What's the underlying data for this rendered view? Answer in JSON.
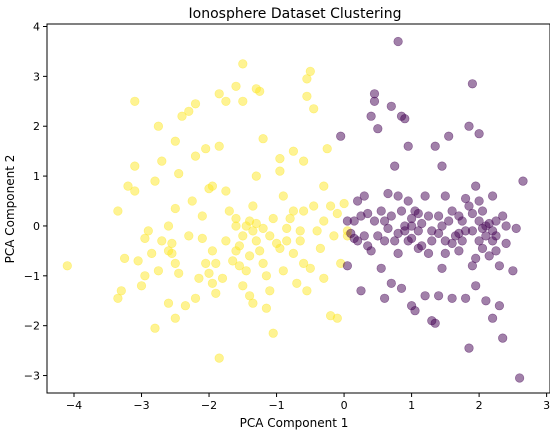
{
  "chart_data": {
    "type": "scatter",
    "title": "Ionosphere Dataset Clustering",
    "xlabel": "PCA Component 1",
    "ylabel": "PCA Component 2",
    "xlim": [
      -4.4,
      3.05
    ],
    "ylim": [
      -3.35,
      4.05
    ],
    "xticks": [
      -4,
      -3,
      -2,
      -1,
      0,
      1,
      2,
      3
    ],
    "yticks": [
      -3,
      -2,
      -1,
      0,
      1,
      2,
      3,
      4
    ],
    "xtick_labels": [
      "−4",
      "−3",
      "−2",
      "−1",
      "0",
      "1",
      "2",
      "3"
    ],
    "ytick_labels": [
      "−3",
      "−2",
      "−1",
      "0",
      "1",
      "2",
      "3",
      "4"
    ],
    "grid": false,
    "legend": false,
    "marker_opacity": 0.5,
    "series": [
      {
        "color": "#fde725",
        "points": [
          [
            -4.1,
            -0.8
          ],
          [
            -3.35,
            -1.45
          ],
          [
            -3.3,
            -1.3
          ],
          [
            -3.25,
            -0.65
          ],
          [
            -3.35,
            0.3
          ],
          [
            -3.2,
            0.8
          ],
          [
            -3.1,
            0.7
          ],
          [
            -3.1,
            1.2
          ],
          [
            -3.1,
            2.5
          ],
          [
            -3.05,
            -0.7
          ],
          [
            -3.0,
            -1.2
          ],
          [
            -2.95,
            -1.0
          ],
          [
            -2.9,
            -0.1
          ],
          [
            -2.8,
            0.9
          ],
          [
            -2.8,
            -2.05
          ],
          [
            -2.75,
            -0.9
          ],
          [
            -2.7,
            -0.3
          ],
          [
            -2.6,
            -0.5
          ],
          [
            -2.55,
            -0.55
          ],
          [
            -2.5,
            -0.75
          ],
          [
            -2.45,
            -0.95
          ],
          [
            -2.6,
            -1.55
          ],
          [
            -2.5,
            -1.85
          ],
          [
            -2.75,
            2.0
          ],
          [
            -2.7,
            1.3
          ],
          [
            -2.5,
            1.7
          ],
          [
            -2.4,
            2.2
          ],
          [
            -2.3,
            2.3
          ],
          [
            -2.35,
            -1.6
          ],
          [
            -2.2,
            -1.45
          ],
          [
            -2.25,
            0.5
          ],
          [
            -2.1,
            0.2
          ],
          [
            -2.2,
            1.4
          ],
          [
            -2.05,
            -0.75
          ],
          [
            -2.0,
            -0.95
          ],
          [
            -1.95,
            -1.15
          ],
          [
            -1.9,
            -1.35
          ],
          [
            -1.8,
            -1.05
          ],
          [
            -1.75,
            -0.3
          ],
          [
            -1.7,
            0.3
          ],
          [
            -1.75,
            0.7
          ],
          [
            -1.95,
            0.8
          ],
          [
            -1.6,
            -0.5
          ],
          [
            -1.55,
            -0.8
          ],
          [
            -1.5,
            -1.2
          ],
          [
            -1.4,
            0.1
          ],
          [
            -1.35,
            -0.1
          ],
          [
            -1.3,
            -0.3
          ],
          [
            -1.25,
            -0.5
          ],
          [
            -1.2,
            -0.75
          ],
          [
            -1.15,
            -1.0
          ],
          [
            -1.35,
            0.4
          ],
          [
            -1.6,
            0.0
          ],
          [
            -1.5,
            -0.2
          ],
          [
            -1.2,
            -0.05
          ],
          [
            -1.1,
            -0.2
          ],
          [
            -1.05,
            0.15
          ],
          [
            -0.95,
            -0.45
          ],
          [
            -0.9,
            -0.9
          ],
          [
            -0.85,
            -0.3
          ],
          [
            -0.8,
            0.15
          ],
          [
            -0.75,
            -0.55
          ],
          [
            -0.7,
            -1.15
          ],
          [
            -0.6,
            -0.75
          ],
          [
            -0.55,
            -1.3
          ],
          [
            -0.5,
            -0.85
          ],
          [
            -0.45,
            0.4
          ],
          [
            -0.4,
            -0.1
          ],
          [
            -0.35,
            -0.45
          ],
          [
            -0.3,
            0.1
          ],
          [
            -0.3,
            0.8
          ],
          [
            -0.2,
            0.4
          ],
          [
            -0.2,
            -1.8
          ],
          [
            -0.6,
            0.3
          ],
          [
            -1.15,
            -1.65
          ],
          [
            -1.05,
            -2.15
          ],
          [
            -1.4,
            -1.4
          ],
          [
            -1.3,
            1.0
          ],
          [
            -1.2,
            1.75
          ],
          [
            -1.25,
            2.7
          ],
          [
            -1.3,
            2.75
          ],
          [
            -1.35,
            -1.55
          ],
          [
            -1.5,
            3.25
          ],
          [
            -1.5,
            2.5
          ],
          [
            -1.6,
            2.8
          ],
          [
            -1.75,
            2.5
          ],
          [
            -1.85,
            1.6
          ],
          [
            -2.05,
            1.55
          ],
          [
            -2.0,
            0.75
          ],
          [
            -1.85,
            -2.65
          ],
          [
            -1.85,
            2.65
          ],
          [
            -2.2,
            2.45
          ],
          [
            -2.5,
            0.35
          ],
          [
            -2.6,
            0.0
          ],
          [
            -2.45,
            1.05
          ],
          [
            -2.3,
            -0.2
          ],
          [
            -2.1,
            -0.25
          ],
          [
            -1.95,
            -0.5
          ],
          [
            -1.6,
            0.15
          ],
          [
            -1.45,
            -0.9
          ],
          [
            -1.4,
            -0.6
          ],
          [
            -1.1,
            -1.3
          ],
          [
            -0.9,
            0.6
          ],
          [
            -0.65,
            -0.1
          ],
          [
            -0.6,
            1.3
          ],
          [
            -0.55,
            2.95
          ],
          [
            -0.55,
            2.6
          ],
          [
            -0.45,
            2.35
          ],
          [
            -0.5,
            3.1
          ],
          [
            -0.95,
            1.35
          ],
          [
            -0.95,
            1.1
          ],
          [
            -0.75,
            1.5
          ],
          [
            -0.25,
            1.55
          ],
          [
            -0.05,
            -0.75
          ],
          [
            -0.15,
            -0.2
          ],
          [
            -0.1,
            -1.85
          ],
          [
            -0.3,
            -1.05
          ],
          [
            0.05,
            -0.1
          ],
          [
            -0.1,
            0.25
          ],
          [
            0.0,
            0.45
          ],
          [
            0.05,
            -0.2
          ],
          [
            -2.85,
            -0.55
          ],
          [
            -2.95,
            -0.25
          ],
          [
            -2.55,
            -0.35
          ],
          [
            -2.15,
            -1.05
          ],
          [
            -1.9,
            -0.75
          ],
          [
            -1.65,
            -0.7
          ],
          [
            -1.55,
            -0.4
          ],
          [
            -1.45,
            0.0
          ],
          [
            -1.3,
            0.05
          ],
          [
            -1.0,
            -0.35
          ],
          [
            -0.85,
            -0.05
          ],
          [
            -0.75,
            0.3
          ],
          [
            -0.65,
            -0.3
          ]
        ]
      },
      {
        "color": "#440154",
        "points": [
          [
            -0.05,
            1.8
          ],
          [
            0.05,
            -0.8
          ],
          [
            0.05,
            0.1
          ],
          [
            0.1,
            -0.15
          ],
          [
            0.15,
            0.1
          ],
          [
            0.15,
            -0.25
          ],
          [
            0.2,
            -0.3
          ],
          [
            0.25,
            0.2
          ],
          [
            0.25,
            -1.3
          ],
          [
            0.3,
            -0.2
          ],
          [
            0.3,
            0.6
          ],
          [
            0.35,
            0.25
          ],
          [
            0.35,
            -0.4
          ],
          [
            0.4,
            2.2
          ],
          [
            0.45,
            2.65
          ],
          [
            0.45,
            2.5
          ],
          [
            0.45,
            0.1
          ],
          [
            0.5,
            -0.2
          ],
          [
            0.55,
            -0.85
          ],
          [
            0.55,
            0.3
          ],
          [
            0.6,
            -0.3
          ],
          [
            0.6,
            -1.45
          ],
          [
            0.65,
            0.65
          ],
          [
            0.65,
            -0.05
          ],
          [
            0.7,
            -1.15
          ],
          [
            0.7,
            0.2
          ],
          [
            0.7,
            2.4
          ],
          [
            0.75,
            1.2
          ],
          [
            0.75,
            -0.3
          ],
          [
            0.8,
            0.6
          ],
          [
            0.8,
            -0.55
          ],
          [
            0.8,
            -0.15
          ],
          [
            0.8,
            3.7
          ],
          [
            0.85,
            0.3
          ],
          [
            0.85,
            2.2
          ],
          [
            0.85,
            -1.25
          ],
          [
            0.9,
            0.0
          ],
          [
            0.9,
            2.15
          ],
          [
            0.95,
            -0.3
          ],
          [
            0.95,
            0.5
          ],
          [
            0.95,
            1.6
          ],
          [
            1.0,
            -0.25
          ],
          [
            1.0,
            0.15
          ],
          [
            1.0,
            -1.6
          ],
          [
            1.05,
            -1.7
          ],
          [
            1.05,
            0.3
          ],
          [
            1.1,
            -0.1
          ],
          [
            1.1,
            -0.45
          ],
          [
            1.15,
            0.05
          ],
          [
            1.2,
            0.6
          ],
          [
            1.2,
            -1.4
          ],
          [
            1.25,
            -0.55
          ],
          [
            1.25,
            0.2
          ],
          [
            1.3,
            -1.9
          ],
          [
            1.3,
            -0.1
          ],
          [
            1.35,
            -1.95
          ],
          [
            1.35,
            1.6
          ],
          [
            1.4,
            0.2
          ],
          [
            1.4,
            -0.15
          ],
          [
            1.4,
            -1.4
          ],
          [
            1.45,
            1.2
          ],
          [
            1.45,
            -0.85
          ],
          [
            1.5,
            0.6
          ],
          [
            1.5,
            -0.55
          ],
          [
            1.5,
            -0.3
          ],
          [
            1.55,
            0.1
          ],
          [
            1.55,
            1.8
          ],
          [
            1.6,
            -0.35
          ],
          [
            1.6,
            -1.45
          ],
          [
            1.65,
            -0.2
          ],
          [
            1.7,
            0.2
          ],
          [
            1.7,
            -0.5
          ],
          [
            1.75,
            0.1
          ],
          [
            1.8,
            -0.1
          ],
          [
            1.8,
            0.55
          ],
          [
            1.8,
            -1.45
          ],
          [
            1.85,
            2.0
          ],
          [
            1.85,
            0.4
          ],
          [
            1.85,
            -2.45
          ],
          [
            1.9,
            -0.1
          ],
          [
            1.9,
            -0.8
          ],
          [
            1.9,
            2.85
          ],
          [
            1.95,
            -0.65
          ],
          [
            1.95,
            0.8
          ],
          [
            1.95,
            -1.2
          ],
          [
            2.0,
            0.1
          ],
          [
            2.0,
            -0.3
          ],
          [
            2.0,
            1.85
          ],
          [
            2.05,
            -0.05
          ],
          [
            2.05,
            0.3
          ],
          [
            2.1,
            -0.2
          ],
          [
            2.1,
            -1.5
          ],
          [
            2.15,
            0.05
          ],
          [
            2.15,
            -0.6
          ],
          [
            2.2,
            0.6
          ],
          [
            2.2,
            -0.3
          ],
          [
            2.2,
            -1.85
          ],
          [
            2.25,
            0.1
          ],
          [
            2.25,
            -0.5
          ],
          [
            2.3,
            -0.8
          ],
          [
            2.3,
            -1.6
          ],
          [
            2.35,
            0.2
          ],
          [
            2.35,
            -2.25
          ],
          [
            2.4,
            0.0
          ],
          [
            2.5,
            -0.9
          ],
          [
            2.55,
            -0.05
          ],
          [
            2.6,
            -3.05
          ],
          [
            2.65,
            0.9
          ],
          [
            1.0,
            0.0
          ],
          [
            1.1,
            0.25
          ],
          [
            1.3,
            -0.3
          ],
          [
            1.6,
            0.3
          ],
          [
            1.7,
            -0.15
          ],
          [
            1.9,
            0.25
          ],
          [
            2.0,
            0.5
          ],
          [
            2.1,
            0.0
          ],
          [
            2.2,
            -0.1
          ],
          [
            0.5,
            1.95
          ],
          [
            0.6,
            0.1
          ],
          [
            0.9,
            -0.1
          ],
          [
            1.15,
            -0.4
          ],
          [
            1.45,
            0.0
          ],
          [
            1.75,
            -0.3
          ],
          [
            2.05,
            -0.45
          ],
          [
            2.25,
            -0.2
          ],
          [
            2.4,
            -0.35
          ],
          [
            0.2,
            0.5
          ],
          [
            0.4,
            -0.5
          ]
        ]
      }
    ]
  }
}
